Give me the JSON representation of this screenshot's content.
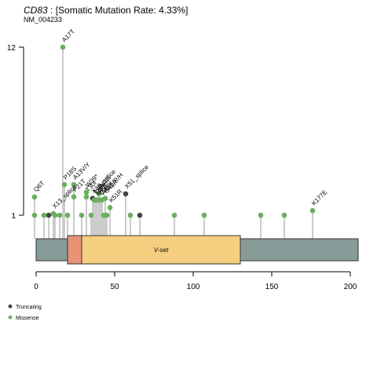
{
  "title": {
    "gene": "CD83",
    "rate_text": " : [Somatic Mutation Rate: 4.33%]",
    "transcript": "NM_004233"
  },
  "chart_data": {
    "type": "lollipop",
    "x_ticks": [
      0,
      50,
      100,
      150,
      200
    ],
    "xlim": [
      0,
      205
    ],
    "y_ticks": [
      1,
      12
    ],
    "protein_length": 205,
    "domains": [
      {
        "name": "",
        "start": 20,
        "end": 29,
        "color": "#E99376"
      },
      {
        "name": "V-set",
        "start": 29,
        "end": 130,
        "color": "#F5CE7F"
      }
    ],
    "legend": [
      {
        "label": "Truncating",
        "color": "#444444"
      },
      {
        "label": "Missense",
        "color": "#6AAF5E"
      }
    ],
    "mutations": [
      {
        "pos": 17,
        "count": 12,
        "type": "Missense",
        "label": "A17T"
      },
      {
        "pos": 18,
        "count": 3,
        "type": "Missense",
        "label": "P18S"
      },
      {
        "pos": 24,
        "count": 3,
        "type": "Missense",
        "label": "A13V/Y"
      },
      {
        "pos": 24,
        "count": 2.2,
        "type": "Missense",
        "label": "P21T"
      },
      {
        "pos": 32,
        "count": 2.2,
        "type": "Missense",
        "label": "T30I"
      },
      {
        "pos": 32,
        "count": 2.5,
        "type": "Missense",
        "label": "W39*"
      },
      {
        "pos": 40,
        "count": 2.4,
        "type": "Missense",
        "label": "P41S"
      },
      {
        "pos": 36,
        "count": 2.1,
        "type": "Truncating",
        "label": "X36_splice"
      },
      {
        "pos": 37,
        "count": 2,
        "type": "Missense",
        "label": "T36I"
      },
      {
        "pos": 38,
        "count": 2,
        "type": "Missense",
        "label": "I30Y"
      },
      {
        "pos": 39,
        "count": 2,
        "type": "Missense",
        "label": "L40F"
      },
      {
        "pos": 41,
        "count": 2,
        "type": "Missense",
        "label": "D45Y"
      },
      {
        "pos": 42,
        "count": 2,
        "type": "Missense",
        "label": "A48E/R/H"
      },
      {
        "pos": 44,
        "count": 2.1,
        "type": "Missense",
        "label": "G42R"
      },
      {
        "pos": 47,
        "count": 1.5,
        "type": "Missense",
        "label": "K51R"
      },
      {
        "pos": 57,
        "count": 2.4,
        "type": "Truncating",
        "label": "X51_splice"
      },
      {
        "pos": 11,
        "count": 1.1,
        "type": "Missense",
        "label": "X13_splice"
      },
      {
        "pos": 176,
        "count": 1.3,
        "type": "Missense",
        "label": "K177E"
      },
      {
        "pos": -1,
        "count": 2.2,
        "type": "Missense",
        "label": "Q6T"
      },
      {
        "pos": 8,
        "count": 1,
        "type": "Truncating",
        "label": ""
      },
      {
        "pos": 66,
        "count": 1,
        "type": "Truncating",
        "label": ""
      },
      {
        "pos": -1,
        "count": 1,
        "type": "Missense",
        "label": ""
      },
      {
        "pos": 5,
        "count": 1,
        "type": "Missense",
        "label": ""
      },
      {
        "pos": 12,
        "count": 1,
        "type": "Missense",
        "label": ""
      },
      {
        "pos": 15,
        "count": 1,
        "type": "Missense",
        "label": ""
      },
      {
        "pos": 20,
        "count": 1,
        "type": "Missense",
        "label": ""
      },
      {
        "pos": 29,
        "count": 1,
        "type": "Missense",
        "label": ""
      },
      {
        "pos": 35,
        "count": 1,
        "type": "Missense",
        "label": ""
      },
      {
        "pos": 43,
        "count": 1,
        "type": "Missense",
        "label": ""
      },
      {
        "pos": 45,
        "count": 1,
        "type": "Missense",
        "label": ""
      },
      {
        "pos": 60,
        "count": 1,
        "type": "Missense",
        "label": ""
      },
      {
        "pos": 88,
        "count": 1,
        "type": "Missense",
        "label": ""
      },
      {
        "pos": 107,
        "count": 1,
        "type": "Missense",
        "label": ""
      },
      {
        "pos": 143,
        "count": 1,
        "type": "Missense",
        "label": ""
      },
      {
        "pos": 158,
        "count": 1,
        "type": "Missense",
        "label": ""
      }
    ]
  }
}
